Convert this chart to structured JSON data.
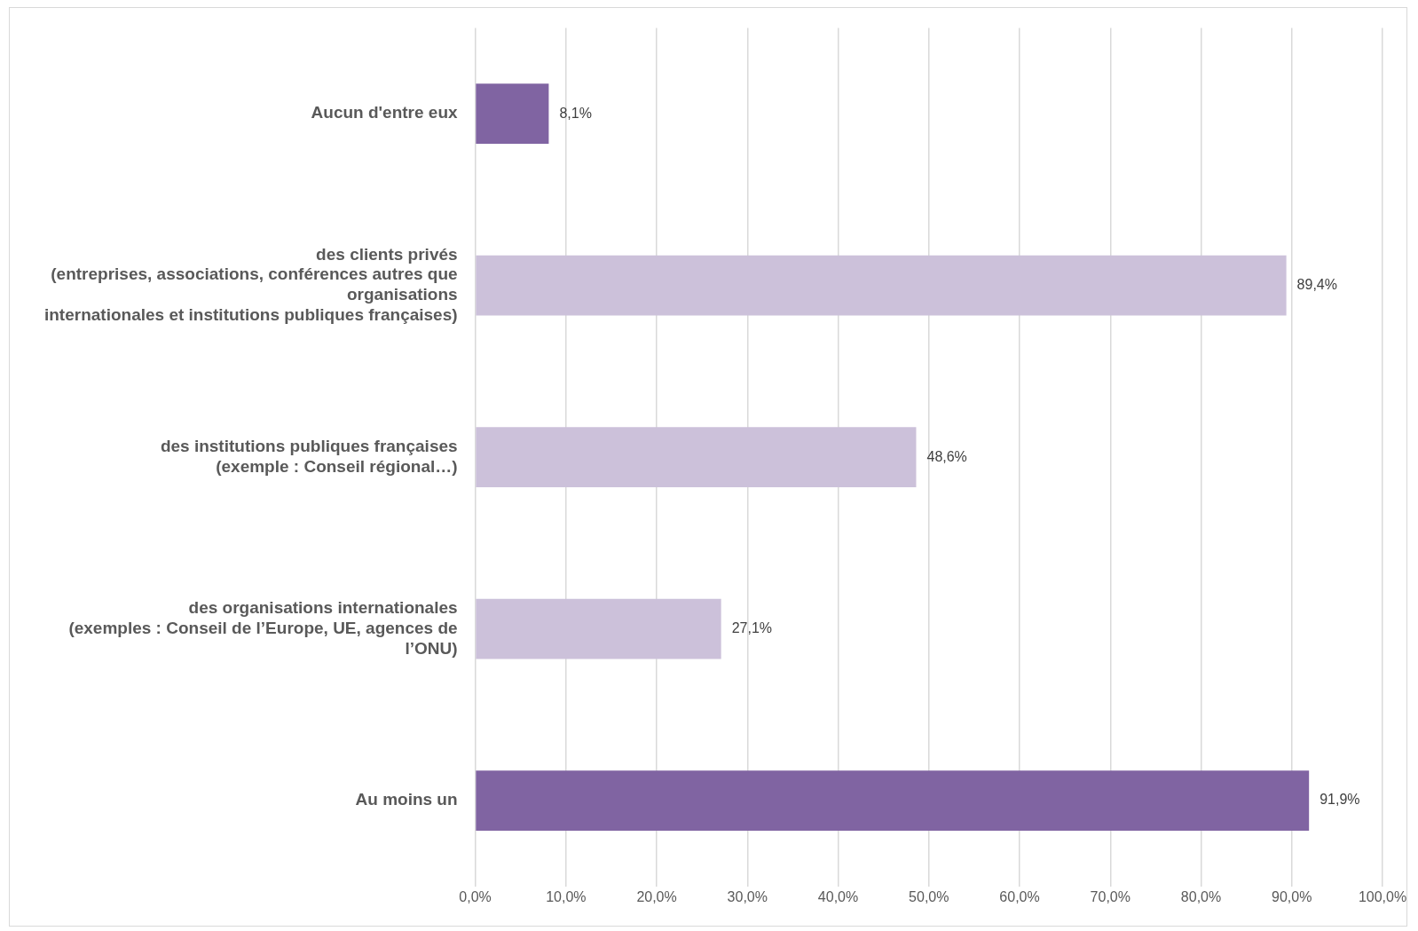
{
  "chart_data": {
    "type": "bar",
    "orientation": "horizontal",
    "categories": [
      "Aucun d'entre eux",
      "des clients privés\n(entreprises, associations, conférences autres que\norganisations\ninternationales et institutions publiques françaises)",
      "des institutions publiques françaises\n(exemple : Conseil régional…)",
      "des organisations internationales\n(exemples : Conseil de l’Europe, UE, agences de\nl’ONU)",
      "Au moins un"
    ],
    "values": [
      8.1,
      89.4,
      48.6,
      27.1,
      91.9
    ],
    "colors": [
      "#8064a2",
      "#ccc1da",
      "#ccc1da",
      "#ccc1da",
      "#8064a2"
    ],
    "value_labels": [
      "8,1%",
      "89,4%",
      "48,6%",
      "27,1%",
      "91,9%"
    ],
    "xlim": [
      0,
      100
    ],
    "xticks": [
      {
        "value": 0,
        "label": "0,0%"
      },
      {
        "value": 10,
        "label": "10,0%"
      },
      {
        "value": 20,
        "label": "20,0%"
      },
      {
        "value": 30,
        "label": "30,0%"
      },
      {
        "value": 40,
        "label": "40,0%"
      },
      {
        "value": 50,
        "label": "50,0%"
      },
      {
        "value": 60,
        "label": "60,0%"
      },
      {
        "value": 70,
        "label": "70,0%"
      },
      {
        "value": 80,
        "label": "80,0%"
      },
      {
        "value": 90,
        "label": "90,0%"
      },
      {
        "value": 100,
        "label": "100,0%"
      }
    ],
    "grid": "x",
    "legend": false
  }
}
